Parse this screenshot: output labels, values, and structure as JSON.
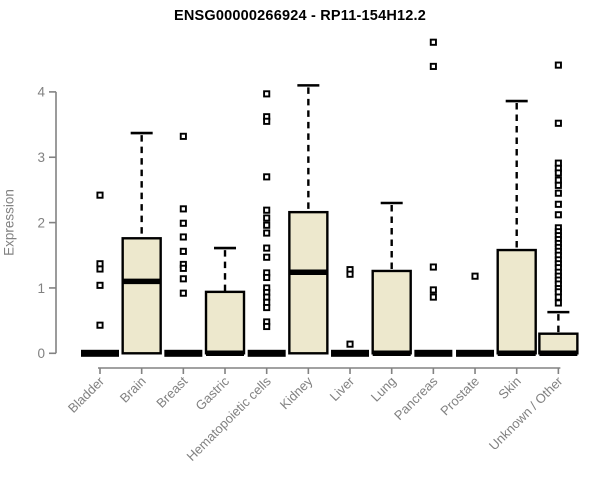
{
  "chart_data": {
    "type": "boxplot",
    "title": "ENSG00000266924 - RP11-154H12.2",
    "ylabel": "Expression",
    "xlabel": "",
    "ylim": [
      0,
      4.8
    ],
    "yticks": [
      0,
      1,
      2,
      3,
      4
    ],
    "grid": false,
    "legend": "none",
    "colors": {
      "box_fill": "#EDE8CD",
      "box_stroke": "#000000",
      "median": "#000000",
      "whisker": "#000000",
      "outlier_stroke": "#000000",
      "axis": "#828282",
      "tick_text": "#818181",
      "title_text": "#000000",
      "background": "#ffffff"
    },
    "categories": [
      "Bladder",
      "Brain",
      "Breast",
      "Gastric",
      "Hematopoietic cells",
      "Kidney",
      "Liver",
      "Lung",
      "Pancreas",
      "Prostate",
      "Skin",
      "Unknown / Other"
    ],
    "boxes": [
      {
        "category": "Bladder",
        "q1": 0,
        "median": 0,
        "q3": 0,
        "whisker_low": 0,
        "whisker_high": 0,
        "outliers": [
          2.42,
          1.37,
          1.29,
          1.04,
          0.43
        ]
      },
      {
        "category": "Brain",
        "q1": 0,
        "median": 1.1,
        "q3": 1.76,
        "whisker_low": 0,
        "whisker_high": 3.37,
        "outliers": []
      },
      {
        "category": "Breast",
        "q1": 0,
        "median": 0,
        "q3": 0,
        "whisker_low": 0,
        "whisker_high": 0,
        "outliers": [
          3.32,
          2.21,
          1.99,
          1.78,
          1.56,
          1.36,
          1.3,
          1.14,
          0.92
        ]
      },
      {
        "category": "Gastric",
        "q1": 0,
        "median": 0,
        "q3": 0.94,
        "whisker_low": 0,
        "whisker_high": 1.61,
        "outliers": []
      },
      {
        "category": "Hematopoietic cells",
        "q1": 0,
        "median": 0,
        "q3": 0,
        "whisker_low": 0,
        "whisker_high": 0,
        "outliers": [
          3.97,
          3.62,
          3.55,
          2.7,
          2.19,
          2.07,
          1.96,
          1.84,
          1.61,
          1.47,
          1.23,
          1.16,
          1.0,
          0.93,
          0.86,
          0.78,
          0.7,
          0.48,
          0.41
        ]
      },
      {
        "category": "Kidney",
        "q1": 0,
        "median": 1.24,
        "q3": 2.16,
        "whisker_low": 0,
        "whisker_high": 4.1,
        "outliers": []
      },
      {
        "category": "Liver",
        "q1": 0,
        "median": 0,
        "q3": 0,
        "whisker_low": 0,
        "whisker_high": 0,
        "outliers": [
          1.28,
          1.21,
          0.14
        ]
      },
      {
        "category": "Lung",
        "q1": 0,
        "median": 0,
        "q3": 1.26,
        "whisker_low": 0,
        "whisker_high": 2.3,
        "outliers": []
      },
      {
        "category": "Pancreas",
        "q1": 0,
        "median": 0,
        "q3": 0,
        "whisker_low": 0,
        "whisker_high": 0,
        "outliers": [
          4.76,
          4.39,
          1.32,
          0.97,
          0.86
        ]
      },
      {
        "category": "Prostate",
        "q1": 0,
        "median": 0,
        "q3": 0,
        "whisker_low": 0,
        "whisker_high": 0,
        "outliers": [
          1.18
        ]
      },
      {
        "category": "Skin",
        "q1": 0,
        "median": 0,
        "q3": 1.58,
        "whisker_low": 0,
        "whisker_high": 3.86,
        "outliers": []
      },
      {
        "category": "Unknown / Other",
        "q1": 0,
        "median": 0,
        "q3": 0.3,
        "whisker_low": 0,
        "whisker_high": 0.63,
        "outliers": [
          4.41,
          3.52,
          2.91,
          2.83,
          2.76,
          2.65,
          2.57,
          2.45,
          2.28,
          2.12,
          1.92,
          1.86,
          1.8,
          1.74,
          1.68,
          1.62,
          1.56,
          1.5,
          1.43,
          1.37,
          1.31,
          1.24,
          1.18,
          1.12,
          1.06,
          0.99,
          0.94,
          0.86,
          0.77
        ]
      }
    ]
  }
}
